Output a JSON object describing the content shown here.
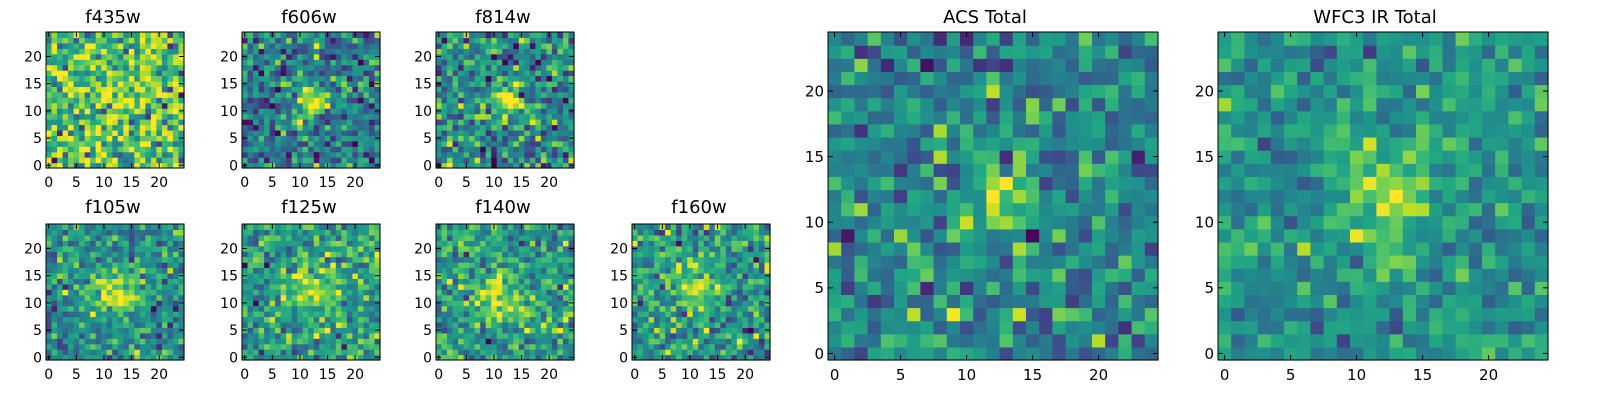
{
  "colormap": "viridis",
  "colors": {
    "cmap_low": "#440154",
    "cmap_mid": "#21918c",
    "cmap_high": "#fde725",
    "frame": "#000000",
    "background": "#ffffff"
  },
  "chart_data": [
    {
      "type": "heatmap",
      "title": "f435w",
      "size": 25,
      "xticks": [
        0,
        5,
        10,
        15,
        20
      ],
      "yticks": [
        0,
        5,
        10,
        15,
        20
      ],
      "xlim": [
        -0.5,
        24.5
      ],
      "ylim": [
        -0.5,
        24.5
      ],
      "origin": "lower",
      "source_center": [
        12,
        12
      ],
      "peak_amplitude": 0.1,
      "noise_level": 0.22,
      "baseline": 0.72,
      "peak_radius": 3.0,
      "seed": 435
    },
    {
      "type": "heatmap",
      "title": "f606w",
      "size": 25,
      "xticks": [
        0,
        5,
        10,
        15,
        20
      ],
      "yticks": [
        0,
        5,
        10,
        15,
        20
      ],
      "xlim": [
        -0.5,
        24.5
      ],
      "ylim": [
        -0.5,
        24.5
      ],
      "origin": "lower",
      "source_center": [
        12,
        12
      ],
      "peak_amplitude": 0.55,
      "noise_level": 0.2,
      "baseline": 0.42,
      "peak_radius": 2.0,
      "seed": 606
    },
    {
      "type": "heatmap",
      "title": "f814w",
      "size": 25,
      "xticks": [
        0,
        5,
        10,
        15,
        20
      ],
      "yticks": [
        0,
        5,
        10,
        15,
        20
      ],
      "xlim": [
        -0.5,
        24.5
      ],
      "ylim": [
        -0.5,
        24.5
      ],
      "origin": "lower",
      "source_center": [
        12,
        12
      ],
      "peak_amplitude": 0.45,
      "noise_level": 0.2,
      "baseline": 0.48,
      "peak_radius": 2.2,
      "seed": 814
    },
    {
      "type": "heatmap",
      "title": "f105w",
      "size": 25,
      "xticks": [
        0,
        5,
        10,
        15,
        20
      ],
      "yticks": [
        0,
        5,
        10,
        15,
        20
      ],
      "xlim": [
        -0.5,
        24.5
      ],
      "ylim": [
        -0.5,
        24.5
      ],
      "origin": "lower",
      "source_center": [
        12,
        12
      ],
      "peak_amplitude": 0.42,
      "noise_level": 0.16,
      "baseline": 0.5,
      "peak_radius": 3.0,
      "seed": 105
    },
    {
      "type": "heatmap",
      "title": "f125w",
      "size": 25,
      "xticks": [
        0,
        5,
        10,
        15,
        20
      ],
      "yticks": [
        0,
        5,
        10,
        15,
        20
      ],
      "xlim": [
        -0.5,
        24.5
      ],
      "ylim": [
        -0.5,
        24.5
      ],
      "origin": "lower",
      "source_center": [
        12,
        12
      ],
      "peak_amplitude": 0.38,
      "noise_level": 0.18,
      "baseline": 0.55,
      "peak_radius": 3.0,
      "seed": 125
    },
    {
      "type": "heatmap",
      "title": "f140w",
      "size": 25,
      "xticks": [
        0,
        5,
        10,
        15,
        20
      ],
      "yticks": [
        0,
        5,
        10,
        15,
        20
      ],
      "xlim": [
        -0.5,
        24.5
      ],
      "ylim": [
        -0.5,
        24.5
      ],
      "origin": "lower",
      "source_center": [
        11,
        11
      ],
      "peak_amplitude": 0.34,
      "noise_level": 0.17,
      "baseline": 0.55,
      "peak_radius": 3.5,
      "seed": 140
    },
    {
      "type": "heatmap",
      "title": "f160w",
      "size": 25,
      "xticks": [
        0,
        5,
        10,
        15,
        20
      ],
      "yticks": [
        0,
        5,
        10,
        15,
        20
      ],
      "xlim": [
        -0.5,
        24.5
      ],
      "ylim": [
        -0.5,
        24.5
      ],
      "origin": "lower",
      "source_center": [
        11,
        13
      ],
      "peak_amplitude": 0.36,
      "noise_level": 0.17,
      "baseline": 0.52,
      "peak_radius": 3.0,
      "seed": 160
    },
    {
      "type": "heatmap",
      "title": "ACS Total",
      "size": 25,
      "xticks": [
        0,
        5,
        10,
        15,
        20
      ],
      "yticks": [
        0,
        5,
        10,
        15,
        20
      ],
      "xlim": [
        -0.5,
        24.5
      ],
      "ylim": [
        -0.5,
        24.5
      ],
      "origin": "lower",
      "source_center": [
        12,
        12
      ],
      "peak_amplitude": 0.45,
      "noise_level": 0.16,
      "baseline": 0.47,
      "peak_radius": 1.8,
      "seed": 9001
    },
    {
      "type": "heatmap",
      "title": "WFC3 IR Total",
      "size": 25,
      "xticks": [
        0,
        5,
        10,
        15,
        20
      ],
      "yticks": [
        0,
        5,
        10,
        15,
        20
      ],
      "xlim": [
        -0.5,
        24.5
      ],
      "ylim": [
        -0.5,
        24.5
      ],
      "origin": "lower",
      "source_center": [
        12,
        12
      ],
      "peak_amplitude": 0.42,
      "noise_level": 0.12,
      "baseline": 0.5,
      "peak_radius": 2.6,
      "seed": 9002
    }
  ]
}
